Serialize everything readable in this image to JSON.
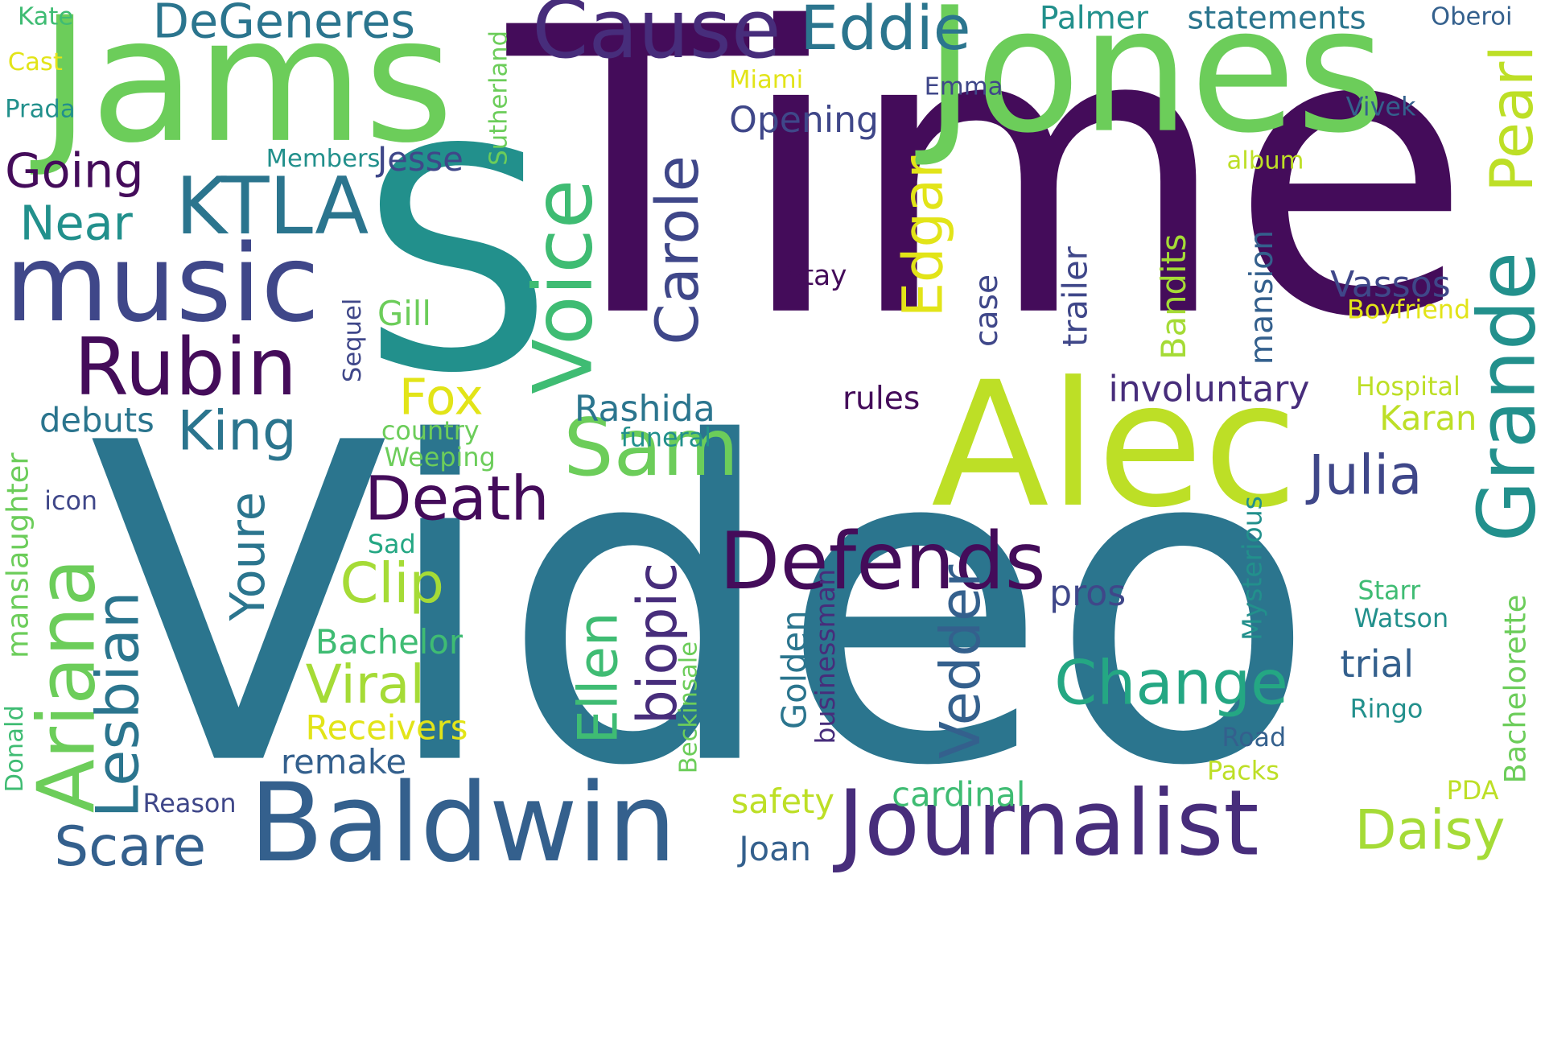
{
  "colors": {
    "background": "#ffffff",
    "dark_purple": "#440c5a",
    "purple": "#472d7b",
    "indigo": "#3f4789",
    "blue": "#34608d",
    "teal_blue": "#2b758e",
    "teal": "#22908c",
    "green_teal": "#24a783",
    "green": "#3fbc73",
    "light_green": "#6ccd5a",
    "lime": "#a5db36",
    "yellow_green": "#bddf26",
    "yellow": "#e2e418"
  },
  "words": [
    {
      "text": "Video",
      "color": "#2b758e"
    },
    {
      "text": "Time",
      "color": "#440c5a"
    },
    {
      "text": "S",
      "color": "#22908c"
    },
    {
      "text": "Jams",
      "color": "#6ccd5a"
    },
    {
      "text": "Jones",
      "color": "#6ccd5a"
    },
    {
      "text": "Alec",
      "color": "#bddf26"
    },
    {
      "text": "Baldwin",
      "color": "#34608d"
    },
    {
      "text": "music",
      "color": "#3f4789"
    },
    {
      "text": "Cause",
      "color": "#472d7b"
    },
    {
      "text": "Journalist",
      "color": "#472d7b"
    },
    {
      "text": "Rubin",
      "color": "#440c5a"
    },
    {
      "text": "KTLA",
      "color": "#2b758e"
    },
    {
      "text": "Defends",
      "color": "#440c5a"
    },
    {
      "text": "Voice",
      "color": "#3fbc73"
    },
    {
      "text": "Grande",
      "color": "#22908c"
    },
    {
      "text": "Ariana",
      "color": "#6ccd5a"
    },
    {
      "text": "Sam",
      "color": "#6ccd5a"
    },
    {
      "text": "Eddie",
      "color": "#2b758e"
    },
    {
      "text": "DeGeneres",
      "color": "#2b758e"
    },
    {
      "text": "Lesbian",
      "color": "#2b758e"
    },
    {
      "text": "Change",
      "color": "#24a783"
    },
    {
      "text": "Death",
      "color": "#440c5a"
    },
    {
      "text": "Pearl",
      "color": "#bddf26"
    },
    {
      "text": "Carole",
      "color": "#3f4789"
    },
    {
      "text": "Edgar",
      "color": "#e2e418"
    },
    {
      "text": "Julia",
      "color": "#3f4789"
    },
    {
      "text": "Daisy",
      "color": "#a5db36"
    },
    {
      "text": "Scare",
      "color": "#34608d"
    },
    {
      "text": "King",
      "color": "#2b758e"
    },
    {
      "text": "Clip",
      "color": "#a5db36"
    },
    {
      "text": "Viral",
      "color": "#a5db36"
    },
    {
      "text": "Ellen",
      "color": "#3fbc73"
    },
    {
      "text": "biopic",
      "color": "#472d7b"
    },
    {
      "text": "Vedder",
      "color": "#34608d"
    },
    {
      "text": "Going",
      "color": "#440c5a"
    },
    {
      "text": "Near",
      "color": "#22908c"
    },
    {
      "text": "Fox",
      "color": "#e2e418"
    },
    {
      "text": "Youre",
      "color": "#2b758e"
    },
    {
      "text": "Bachelorette",
      "color": "#6ccd5a"
    },
    {
      "text": "manslaughter",
      "color": "#6ccd5a"
    },
    {
      "text": "Palmer",
      "color": "#22908c"
    },
    {
      "text": "statements",
      "color": "#2b758e"
    },
    {
      "text": "Opening",
      "color": "#3f4789"
    },
    {
      "text": "Rashida",
      "color": "#2b758e"
    },
    {
      "text": "Vassos",
      "color": "#3f4789"
    },
    {
      "text": "involuntary",
      "color": "#472d7b"
    },
    {
      "text": "trial",
      "color": "#34608d"
    },
    {
      "text": "pros",
      "color": "#3f4789"
    },
    {
      "text": "Karan",
      "color": "#bddf26"
    },
    {
      "text": "cardinal",
      "color": "#3fbc73"
    },
    {
      "text": "Bachelor",
      "color": "#3fbc73"
    },
    {
      "text": "remake",
      "color": "#34608d"
    },
    {
      "text": "Receivers",
      "color": "#e2e418"
    },
    {
      "text": "safety",
      "color": "#bddf26"
    },
    {
      "text": "Joan",
      "color": "#34608d"
    },
    {
      "text": "debuts",
      "color": "#2b758e"
    },
    {
      "text": "Jesse",
      "color": "#3f4789"
    },
    {
      "text": "Gill",
      "color": "#6ccd5a"
    },
    {
      "text": "rules",
      "color": "#440c5a"
    },
    {
      "text": "trailer",
      "color": "#3f4789"
    },
    {
      "text": "case",
      "color": "#3f4789"
    },
    {
      "text": "Bandits",
      "color": "#a5db36"
    },
    {
      "text": "mansion",
      "color": "#34608d"
    },
    {
      "text": "Golden",
      "color": "#2b758e"
    },
    {
      "text": "businessman",
      "color": "#472d7b"
    },
    {
      "text": "Mysterious",
      "color": "#22908c"
    },
    {
      "text": "Beckinsale",
      "color": "#6ccd5a"
    },
    {
      "text": "Sutherland",
      "color": "#6ccd5a"
    },
    {
      "text": "Sequel",
      "color": "#3f4789"
    },
    {
      "text": "Donald",
      "color": "#3fbc73"
    },
    {
      "text": "Stay",
      "color": "#440c5a"
    },
    {
      "text": "Boyfriend",
      "color": "#e2e418"
    },
    {
      "text": "Hospital",
      "color": "#bddf26"
    },
    {
      "text": "country",
      "color": "#6ccd5a"
    },
    {
      "text": "Weeping",
      "color": "#6ccd5a"
    },
    {
      "text": "funeral",
      "color": "#22908c"
    },
    {
      "text": "Sad",
      "color": "#24a783"
    },
    {
      "text": "icon",
      "color": "#3f4789"
    },
    {
      "text": "Reason",
      "color": "#3f4789"
    },
    {
      "text": "Kate",
      "color": "#3fbc73"
    },
    {
      "text": "Cast",
      "color": "#e2e418"
    },
    {
      "text": "Prada",
      "color": "#22908c"
    },
    {
      "text": "Members",
      "color": "#22908c"
    },
    {
      "text": "Miami",
      "color": "#e2e418"
    },
    {
      "text": "Emma",
      "color": "#3f4789"
    },
    {
      "text": "Vivek",
      "color": "#34608d"
    },
    {
      "text": "Oberoi",
      "color": "#34608d"
    },
    {
      "text": "album",
      "color": "#bddf26"
    },
    {
      "text": "Starr",
      "color": "#3fbc73"
    },
    {
      "text": "Watson",
      "color": "#22908c"
    },
    {
      "text": "Ringo",
      "color": "#22908c"
    },
    {
      "text": "Road",
      "color": "#34608d"
    },
    {
      "text": "Packs",
      "color": "#bddf26"
    },
    {
      "text": "PDA",
      "color": "#bddf26"
    }
  ]
}
